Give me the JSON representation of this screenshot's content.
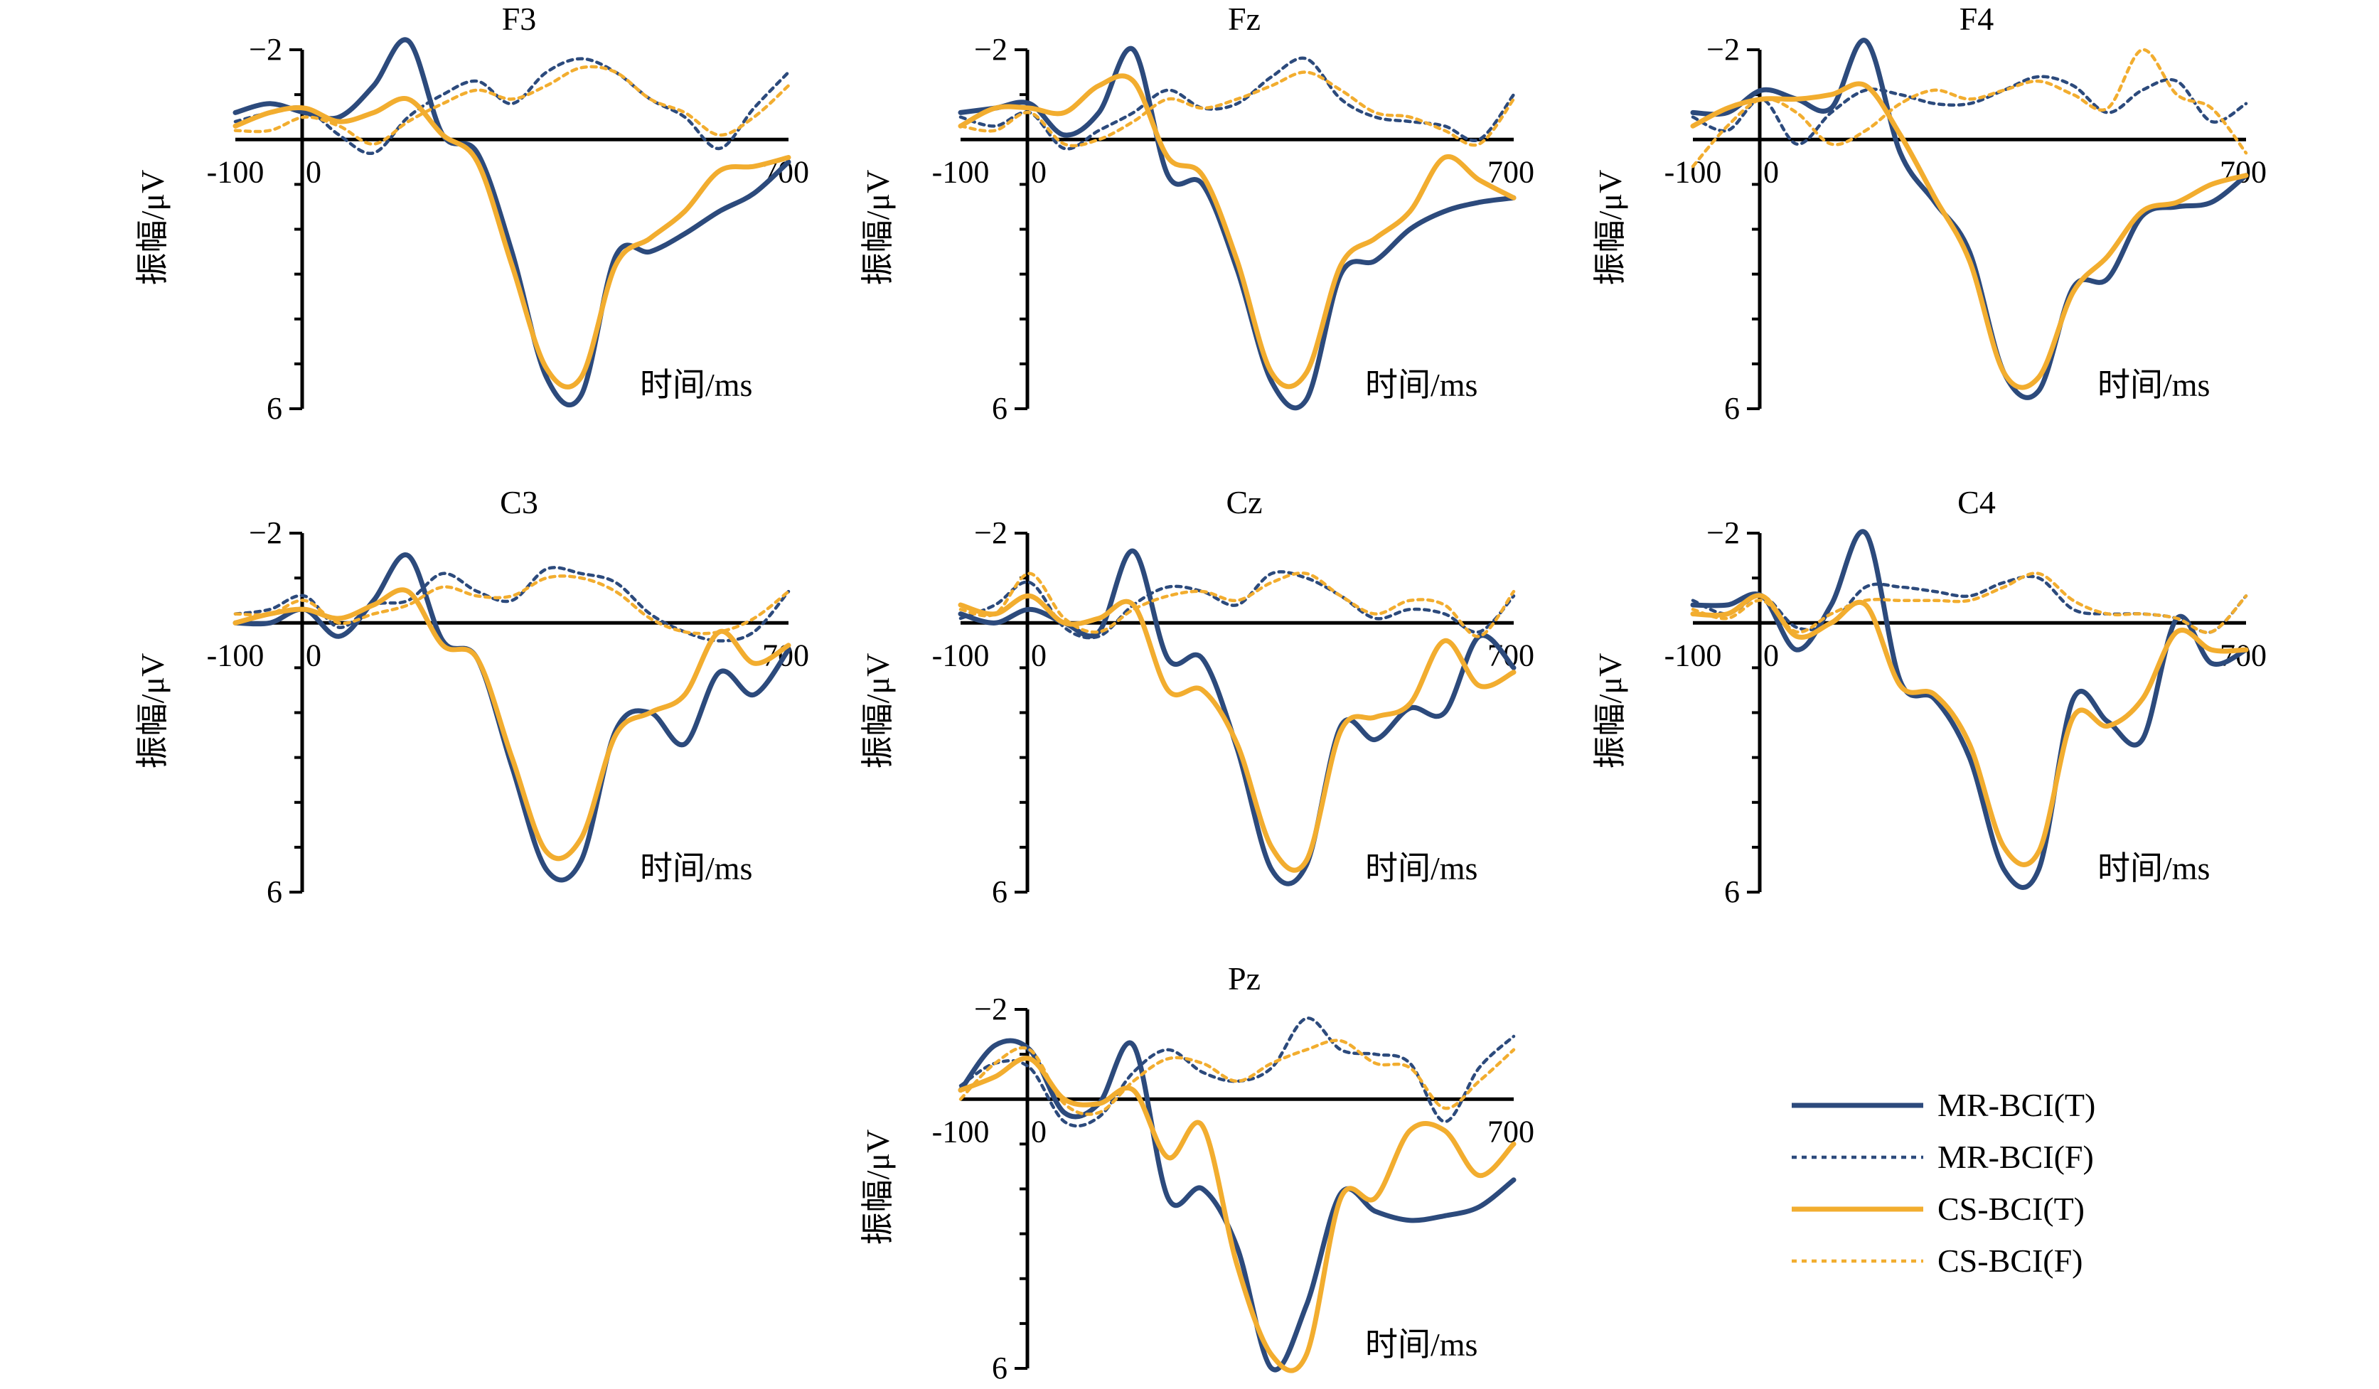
{
  "chart_data": {
    "type": "line",
    "y_inverted": true,
    "colors": {
      "mr": "#2c4a7c",
      "cs": "#f2ad2f"
    },
    "legend": [
      {
        "name": "MR-BCI(T)",
        "color": "#2c4a7c",
        "dash": "solid"
      },
      {
        "name": "MR-BCI(F)",
        "color": "#2c4a7c",
        "dash": "dotted"
      },
      {
        "name": "CS-BCI(T)",
        "color": "#f2ad2f",
        "dash": "solid"
      },
      {
        "name": "CS-BCI(F)",
        "color": "#f2ad2f",
        "dash": "dotted"
      }
    ],
    "shared": {
      "xlim": [
        -100,
        700
      ],
      "ylim": [
        -2,
        6
      ],
      "ylabel": "振幅/μV",
      "xlabel": "时间/ms",
      "x_ticks": [
        "-100",
        "0",
        "700"
      ],
      "y_ticks": [
        "−2",
        "6"
      ],
      "x": [
        -100,
        -50,
        0,
        50,
        100,
        150,
        200,
        250,
        300,
        350,
        400,
        450,
        500,
        550,
        600,
        650,
        700
      ]
    },
    "panels": [
      {
        "title": "F3",
        "series": [
          {
            "name": "MR-BCI(T)",
            "values": [
              -0.6,
              -0.8,
              -0.6,
              -0.5,
              -1.2,
              -2.2,
              -0.1,
              0.3,
              2.5,
              5.3,
              5.7,
              2.6,
              2.5,
              2.1,
              1.6,
              1.2,
              0.5
            ]
          },
          {
            "name": "MR-BCI(F)",
            "values": [
              -0.4,
              -0.6,
              -0.7,
              -0.1,
              0.3,
              -0.5,
              -1.0,
              -1.3,
              -0.8,
              -1.5,
              -1.8,
              -1.5,
              -0.9,
              -0.5,
              0.2,
              -0.7,
              -1.5
            ]
          },
          {
            "name": "CS-BCI(T)",
            "values": [
              -0.3,
              -0.6,
              -0.7,
              -0.4,
              -0.6,
              -0.9,
              -0.1,
              0.5,
              2.8,
              5.1,
              5.3,
              2.8,
              2.2,
              1.6,
              0.7,
              0.6,
              0.4
            ]
          },
          {
            "name": "CS-BCI(F)",
            "values": [
              -0.2,
              -0.2,
              -0.5,
              -0.3,
              0.1,
              -0.4,
              -0.8,
              -1.1,
              -0.9,
              -1.2,
              -1.6,
              -1.5,
              -0.9,
              -0.6,
              -0.1,
              -0.5,
              -1.2
            ]
          }
        ]
      },
      {
        "title": "Fz",
        "series": [
          {
            "name": "MR-BCI(T)",
            "values": [
              -0.6,
              -0.7,
              -0.8,
              -0.1,
              -0.6,
              -2.0,
              0.8,
              1.0,
              2.9,
              5.4,
              5.8,
              3.0,
              2.7,
              2.0,
              1.6,
              1.4,
              1.3
            ]
          },
          {
            "name": "MR-BCI(F)",
            "values": [
              -0.5,
              -0.3,
              -0.6,
              0.2,
              -0.2,
              -0.6,
              -1.1,
              -0.7,
              -0.8,
              -1.4,
              -1.8,
              -0.9,
              -0.5,
              -0.4,
              -0.3,
              0.0,
              -1.0
            ]
          },
          {
            "name": "CS-BCI(T)",
            "values": [
              -0.3,
              -0.7,
              -0.7,
              -0.6,
              -1.2,
              -1.3,
              0.4,
              0.8,
              2.7,
              5.2,
              5.2,
              2.8,
              2.2,
              1.6,
              0.4,
              0.9,
              1.3
            ]
          },
          {
            "name": "CS-BCI(F)",
            "values": [
              -0.3,
              -0.2,
              -0.6,
              0.1,
              0.0,
              -0.4,
              -0.9,
              -0.7,
              -0.9,
              -1.2,
              -1.5,
              -1.1,
              -0.6,
              -0.5,
              -0.2,
              0.1,
              -0.9
            ]
          }
        ]
      },
      {
        "title": "F4",
        "series": [
          {
            "name": "MR-BCI(T)",
            "values": [
              -0.6,
              -0.6,
              -1.1,
              -0.9,
              -0.7,
              -2.2,
              0.3,
              1.4,
              2.5,
              5.2,
              5.6,
              3.3,
              3.1,
              1.7,
              1.5,
              1.4,
              0.8
            ]
          },
          {
            "name": "MR-BCI(F)",
            "values": [
              -0.5,
              -0.2,
              -0.9,
              0.1,
              -0.6,
              -1.1,
              -1.0,
              -0.8,
              -0.8,
              -1.1,
              -1.4,
              -1.2,
              -0.6,
              -1.1,
              -1.3,
              -0.4,
              -0.8
            ]
          },
          {
            "name": "CS-BCI(T)",
            "values": [
              -0.3,
              -0.7,
              -0.9,
              -0.9,
              -1.0,
              -1.2,
              -0.1,
              1.3,
              2.7,
              5.2,
              5.3,
              3.4,
              2.6,
              1.6,
              1.4,
              1.0,
              0.8
            ]
          },
          {
            "name": "CS-BCI(F)",
            "values": [
              0.6,
              -0.3,
              -0.9,
              -0.6,
              0.1,
              -0.2,
              -0.8,
              -1.1,
              -0.9,
              -1.1,
              -1.3,
              -1.0,
              -0.7,
              -2.0,
              -1.0,
              -0.7,
              0.3
            ]
          }
        ]
      },
      {
        "title": "C3",
        "series": [
          {
            "name": "MR-BCI(T)",
            "values": [
              0.0,
              0.0,
              -0.3,
              0.3,
              -0.5,
              -1.5,
              0.4,
              0.8,
              3.2,
              5.5,
              5.3,
              2.4,
              2.0,
              2.7,
              1.1,
              1.6,
              0.6
            ]
          },
          {
            "name": "MR-BCI(F)",
            "values": [
              -0.2,
              -0.3,
              -0.6,
              0.1,
              -0.4,
              -0.5,
              -1.1,
              -0.7,
              -0.5,
              -1.2,
              -1.1,
              -0.9,
              -0.2,
              0.2,
              0.4,
              0.2,
              -0.7
            ]
          },
          {
            "name": "CS-BCI(T)",
            "values": [
              0.0,
              -0.2,
              -0.3,
              -0.1,
              -0.4,
              -0.7,
              0.5,
              0.8,
              3.0,
              5.1,
              4.8,
              2.5,
              2.0,
              1.6,
              0.2,
              0.9,
              0.5
            ]
          },
          {
            "name": "CS-BCI(F)",
            "values": [
              -0.2,
              -0.2,
              -0.5,
              0.0,
              -0.2,
              -0.4,
              -0.8,
              -0.6,
              -0.6,
              -1.0,
              -1.0,
              -0.7,
              -0.1,
              0.2,
              0.2,
              -0.1,
              -0.7
            ]
          }
        ]
      },
      {
        "title": "Cz",
        "series": [
          {
            "name": "MR-BCI(T)",
            "values": [
              -0.2,
              0.0,
              -0.3,
              0.0,
              0.2,
              -1.6,
              0.8,
              0.8,
              2.8,
              5.5,
              5.4,
              2.3,
              2.6,
              1.9,
              2.0,
              0.3,
              1.0
            ]
          },
          {
            "name": "MR-BCI(F)",
            "values": [
              -0.1,
              -0.4,
              -0.9,
              0.1,
              0.3,
              -0.4,
              -0.8,
              -0.7,
              -0.4,
              -1.1,
              -1.0,
              -0.6,
              -0.1,
              -0.3,
              -0.2,
              0.2,
              -0.6
            ]
          },
          {
            "name": "CS-BCI(T)",
            "values": [
              -0.4,
              -0.2,
              -0.6,
              0.0,
              -0.1,
              -0.4,
              1.5,
              1.5,
              2.7,
              5.0,
              5.3,
              2.4,
              2.1,
              1.8,
              0.4,
              1.4,
              1.1
            ]
          },
          {
            "name": "CS-BCI(F)",
            "values": [
              -0.3,
              -0.2,
              -1.1,
              -0.1,
              0.2,
              -0.3,
              -0.6,
              -0.7,
              -0.5,
              -0.9,
              -1.1,
              -0.6,
              -0.2,
              -0.5,
              -0.4,
              0.3,
              -0.7
            ]
          }
        ]
      },
      {
        "title": "C4",
        "series": [
          {
            "name": "MR-BCI(T)",
            "values": [
              -0.4,
              -0.4,
              -0.6,
              0.6,
              -0.4,
              -2.0,
              1.3,
              1.7,
              3.0,
              5.5,
              5.5,
              1.7,
              2.2,
              2.6,
              -0.1,
              0.9,
              0.6
            ]
          },
          {
            "name": "MR-BCI(F)",
            "values": [
              -0.5,
              -0.2,
              -0.6,
              0.1,
              0.0,
              -0.8,
              -0.8,
              -0.7,
              -0.6,
              -0.9,
              -1.0,
              -0.3,
              -0.2,
              -0.2,
              -0.1,
              0.2,
              -0.6
            ]
          },
          {
            "name": "CS-BCI(T)",
            "values": [
              -0.2,
              -0.2,
              -0.6,
              0.3,
              0.0,
              -0.4,
              1.4,
              1.6,
              2.7,
              5.0,
              5.1,
              2.1,
              2.3,
              1.7,
              0.2,
              0.6,
              0.6
            ]
          },
          {
            "name": "CS-BCI(F)",
            "values": [
              -0.3,
              -0.1,
              -0.5,
              0.2,
              -0.2,
              -0.5,
              -0.5,
              -0.5,
              -0.5,
              -0.8,
              -1.1,
              -0.5,
              -0.2,
              -0.2,
              -0.1,
              0.2,
              -0.6
            ]
          }
        ]
      },
      {
        "title": "Pz",
        "series": [
          {
            "name": "MR-BCI(T)",
            "values": [
              -0.2,
              -1.2,
              -1.1,
              0.3,
              0.1,
              -1.2,
              2.2,
              2.0,
              3.3,
              6.0,
              4.6,
              2.1,
              2.5,
              2.7,
              2.6,
              2.4,
              1.8
            ]
          },
          {
            "name": "MR-BCI(F)",
            "values": [
              -0.3,
              -0.8,
              -0.7,
              0.5,
              0.4,
              -0.6,
              -1.1,
              -0.6,
              -0.4,
              -0.7,
              -1.8,
              -1.1,
              -1.0,
              -0.8,
              0.5,
              -0.7,
              -1.4
            ]
          },
          {
            "name": "CS-BCI(T)",
            "values": [
              -0.2,
              -0.5,
              -0.9,
              0.0,
              0.1,
              -0.2,
              1.3,
              0.6,
              3.7,
              5.7,
              5.7,
              2.2,
              2.2,
              0.7,
              0.7,
              1.7,
              1.0
            ]
          },
          {
            "name": "CS-BCI(F)",
            "values": [
              0.0,
              -0.8,
              -1.1,
              0.1,
              0.3,
              -0.4,
              -0.9,
              -0.8,
              -0.4,
              -0.8,
              -1.1,
              -1.3,
              -0.8,
              -0.7,
              0.2,
              -0.4,
              -1.1
            ]
          }
        ]
      }
    ]
  }
}
